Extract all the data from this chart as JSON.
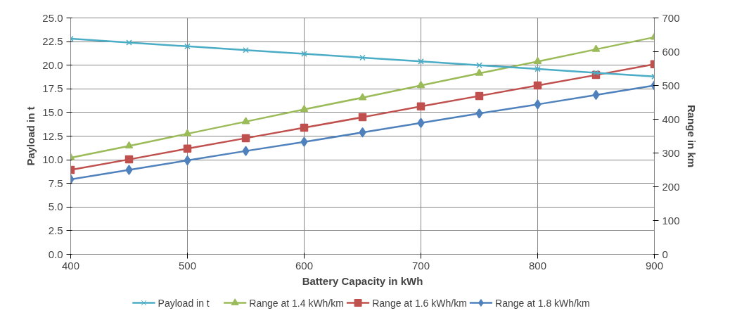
{
  "chart_data": {
    "type": "line",
    "xlabel": "Battery Capacity in kWh",
    "ylabel": "Payload in t",
    "y2label": "Range in km",
    "x": [
      400,
      450,
      500,
      550,
      600,
      650,
      700,
      750,
      800,
      850,
      900
    ],
    "xlim": [
      400,
      900
    ],
    "xticks": [
      400,
      500,
      600,
      700,
      800,
      900
    ],
    "ylim": [
      0,
      25
    ],
    "yticks": [
      {
        "value": 0,
        "label": "0.0"
      },
      {
        "value": 2.5,
        "label": "2.5"
      },
      {
        "value": 5,
        "label": "5.0"
      },
      {
        "value": 7.5,
        "label": "7.5"
      },
      {
        "value": 10,
        "label": "10.0"
      },
      {
        "value": 12.5,
        "label": "12.5"
      },
      {
        "value": 15,
        "label": "15.0"
      },
      {
        "value": 17.5,
        "label": "17.5"
      },
      {
        "value": 20,
        "label": "20.0"
      },
      {
        "value": 22.5,
        "label": "22.5"
      },
      {
        "value": 25,
        "label": "25.0"
      }
    ],
    "y2lim": [
      0,
      700
    ],
    "y2ticks": [
      0,
      100,
      200,
      300,
      400,
      500,
      600,
      700
    ],
    "grid": true,
    "legend": "bottom",
    "series": [
      {
        "name": "Payload in t",
        "color": "#4bacc6",
        "marker": "cross",
        "values": [
          22.8,
          22.4,
          22.0,
          21.6,
          21.2,
          20.8,
          20.4,
          20.0,
          19.6,
          19.2,
          18.8
        ]
      },
      {
        "name": "Range at 1.4 kWh/km",
        "color": "#9bbb59",
        "marker": "triangle",
        "axis": "y2",
        "values": [
          286,
          321,
          357,
          393,
          429,
          464,
          500,
          536,
          571,
          607,
          643
        ]
      },
      {
        "name": "Range at 1.6 kWh/km",
        "color": "#c0504d",
        "marker": "square",
        "axis": "y2",
        "values": [
          250,
          281,
          313,
          344,
          375,
          406,
          438,
          469,
          500,
          531,
          563
        ]
      },
      {
        "name": "Range at 1.8 kWh/km",
        "color": "#4f81bd",
        "marker": "diamond",
        "axis": "y2",
        "values": [
          222,
          250,
          278,
          306,
          333,
          361,
          389,
          417,
          444,
          472,
          500
        ]
      }
    ]
  }
}
